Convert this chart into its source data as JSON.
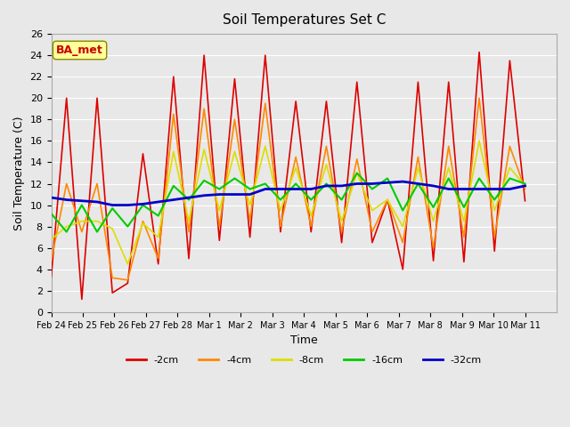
{
  "title": "Soil Temperatures Set C",
  "xlabel": "Time",
  "ylabel": "Soil Temperature (C)",
  "ylim": [
    0,
    26
  ],
  "xlim": [
    0,
    16
  ],
  "background_color": "#e8e8e8",
  "plot_bg_color": "#e8e8e8",
  "annotation_text": "BA_met",
  "annotation_color": "#cc0000",
  "annotation_bg": "#ffff99",
  "xtick_labels": [
    "Feb 24",
    "Feb 25",
    "Feb 26",
    "Feb 27",
    "Feb 28",
    "Mar 1",
    "Mar 2",
    "Mar 3",
    "Mar 4",
    "Mar 5",
    "Mar 6",
    "Mar 7",
    "Mar 8",
    "Mar 9",
    "Mar 10",
    "Mar 11"
  ],
  "series": {
    "-2cm": {
      "color": "#dd0000",
      "lw": 1.2
    },
    "-4cm": {
      "color": "#ff8800",
      "lw": 1.2
    },
    "-8cm": {
      "color": "#dddd00",
      "lw": 1.2
    },
    "-16cm": {
      "color": "#00cc00",
      "lw": 1.5
    },
    "-32cm": {
      "color": "#0000cc",
      "lw": 2.0
    }
  },
  "data": {
    "-2cm": [
      3.3,
      20.0,
      1.2,
      20.0,
      1.8,
      2.7,
      14.8,
      4.5,
      22.0,
      5.0,
      24.0,
      6.7,
      21.8,
      7.0,
      24.0,
      7.5,
      19.7,
      7.5,
      19.7,
      6.5,
      21.5,
      6.5,
      10.5,
      4.0,
      21.5,
      4.8,
      21.5,
      4.7,
      24.3,
      5.7,
      23.5,
      10.4
    ],
    "-4cm": [
      4.8,
      12.0,
      7.5,
      12.0,
      3.2,
      3.0,
      8.5,
      5.0,
      18.5,
      7.5,
      19.0,
      8.0,
      18.0,
      8.5,
      19.5,
      8.0,
      14.5,
      8.0,
      15.5,
      7.5,
      14.3,
      7.5,
      10.5,
      6.5,
      14.5,
      6.0,
      15.5,
      7.0,
      20.0,
      7.0,
      15.5,
      11.5
    ],
    "-8cm": [
      6.8,
      8.0,
      8.5,
      8.5,
      7.8,
      4.5,
      8.3,
      7.0,
      15.0,
      8.5,
      15.2,
      9.5,
      15.0,
      10.0,
      15.5,
      9.5,
      13.5,
      9.0,
      13.8,
      8.5,
      13.0,
      9.5,
      10.5,
      8.0,
      13.5,
      8.5,
      13.5,
      8.5,
      16.0,
      9.5,
      13.5,
      11.8
    ],
    "-16cm": [
      9.2,
      7.5,
      10.0,
      7.5,
      9.7,
      8.0,
      10.0,
      9.0,
      11.8,
      10.5,
      12.3,
      11.5,
      12.5,
      11.5,
      12.0,
      10.5,
      12.0,
      10.5,
      12.0,
      10.5,
      13.0,
      11.5,
      12.5,
      9.5,
      12.0,
      9.8,
      12.5,
      9.8,
      12.5,
      10.5,
      12.5,
      12.0
    ],
    "-32cm": [
      10.7,
      10.5,
      10.4,
      10.3,
      10.0,
      10.0,
      10.1,
      10.3,
      10.5,
      10.7,
      10.9,
      11.0,
      11.0,
      11.0,
      11.5,
      11.5,
      11.5,
      11.5,
      11.8,
      11.8,
      12.0,
      12.0,
      12.1,
      12.2,
      12.0,
      11.8,
      11.5,
      11.5,
      11.5,
      11.5,
      11.5,
      11.8
    ]
  }
}
